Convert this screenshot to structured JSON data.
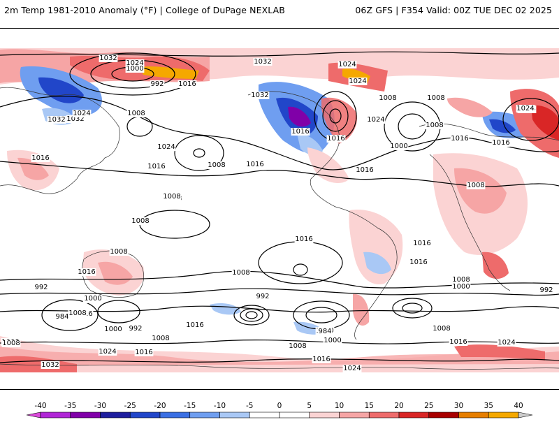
{
  "header": {
    "left_title": "2m Temp 1981-2010 Anomaly (°F) | College of DuPage NEXLAB",
    "right_title": "06Z GFS | F354 Valid: 00Z TUE DEC 02 2025"
  },
  "legend": {
    "tick_labels": [
      "-40",
      "-35",
      "-30",
      "-25",
      "-20",
      "-15",
      "-10",
      "-5",
      "0",
      "5",
      "10",
      "15",
      "20",
      "25",
      "30",
      "35",
      "40"
    ],
    "colors": [
      "#d94ad9",
      "#b026d6",
      "#8000a8",
      "#1e1e9e",
      "#2146c9",
      "#3a6fe3",
      "#6f9ef0",
      "#a9c8f5",
      "#ffffff",
      "#ffffff",
      "#fbd3d3",
      "#f6a5a5",
      "#ee6b6b",
      "#d92626",
      "#a80000",
      "#e67e00",
      "#f5a800",
      "#ffd633",
      "#cccccc"
    ]
  },
  "map": {
    "pressure_labels": [
      {
        "text": "1032"
      },
      {
        "text": "1024"
      },
      {
        "text": "1000"
      },
      {
        "text": "992"
      },
      {
        "text": "1016"
      },
      {
        "text": "1032"
      },
      {
        "text": "1024"
      },
      {
        "text": "1032"
      },
      {
        "text": "1024"
      },
      {
        "text": "1008"
      },
      {
        "text": "1032"
      },
      {
        "text": "1024"
      },
      {
        "text": "1016"
      },
      {
        "text": "1016"
      },
      {
        "text": "1008"
      },
      {
        "text": "1024"
      },
      {
        "text": "1016"
      },
      {
        "text": "1008"
      },
      {
        "text": "1016"
      },
      {
        "text": "1008"
      },
      {
        "text": "1000"
      },
      {
        "text": "1008"
      },
      {
        "text": "1024"
      },
      {
        "text": "1016"
      },
      {
        "text": "1016"
      },
      {
        "text": "1024"
      },
      {
        "text": "1032"
      },
      {
        "text": "1024"
      },
      {
        "text": "1016"
      },
      {
        "text": "1008"
      },
      {
        "text": "1016"
      },
      {
        "text": "1008"
      },
      {
        "text": "1008"
      },
      {
        "text": "1008"
      },
      {
        "text": "1016"
      },
      {
        "text": "1016"
      },
      {
        "text": "1008"
      },
      {
        "text": "1016"
      },
      {
        "text": "1008"
      },
      {
        "text": "1000"
      },
      {
        "text": "992"
      },
      {
        "text": "992"
      },
      {
        "text": "1008"
      },
      {
        "text": "1000"
      },
      {
        "text": "1008"
      },
      {
        "text": "992"
      },
      {
        "text": "984"
      },
      {
        "text": "1000"
      },
      {
        "text": "992"
      },
      {
        "text": "1016"
      },
      {
        "text": "1008"
      },
      {
        "text": "1024"
      },
      {
        "text": "1016"
      },
      {
        "text": "1008"
      },
      {
        "text": "1000"
      },
      {
        "text": "984"
      },
      {
        "text": "1000"
      },
      {
        "text": "1008"
      },
      {
        "text": "1016"
      },
      {
        "text": "1024"
      },
      {
        "text": "1008"
      },
      {
        "text": "1016"
      },
      {
        "text": "1032"
      },
      {
        "text": "1024"
      },
      {
        "text": "1016"
      },
      {
        "text": "1000"
      },
      {
        "text": "1008"
      },
      {
        "text": "1016"
      },
      {
        "text": "992"
      }
    ]
  }
}
